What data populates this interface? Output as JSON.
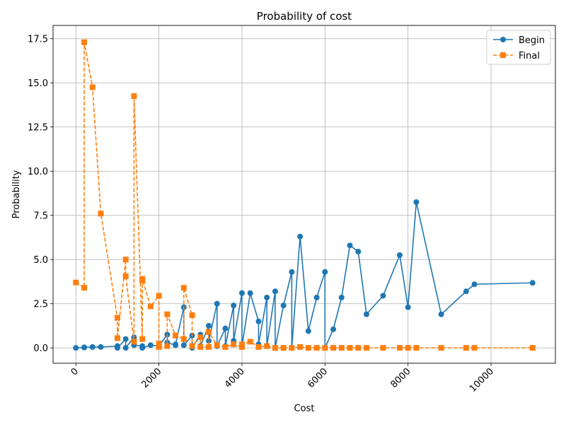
{
  "chart_data": {
    "type": "line",
    "title": "Probability of cost",
    "xlabel": "Cost",
    "ylabel": "Probability",
    "xlim": [
      -550,
      11550
    ],
    "ylim": [
      -0.87,
      18.25
    ],
    "x_ticks": [
      0,
      2000,
      4000,
      6000,
      8000,
      10000
    ],
    "x_tick_labels": [
      "0",
      "2000",
      "4000",
      "6000",
      "8000",
      "10000"
    ],
    "x_tick_rotation": 45,
    "y_ticks": [
      0.0,
      2.5,
      5.0,
      7.5,
      10.0,
      12.5,
      15.0,
      17.5
    ],
    "y_tick_labels": [
      "0.0",
      "2.5",
      "5.0",
      "7.5",
      "10.0",
      "12.5",
      "15.0",
      "17.5"
    ],
    "grid": true,
    "legend_position": "top-right",
    "series": [
      {
        "name": "Begin",
        "color": "#1f77b4",
        "line_style": "solid",
        "marker": "circle",
        "points": [
          [
            0,
            0.0
          ],
          [
            200,
            0.02
          ],
          [
            200,
            0.03
          ],
          [
            400,
            0.05
          ],
          [
            600,
            0.05
          ],
          [
            1000,
            0.1
          ],
          [
            1000,
            0.0
          ],
          [
            1200,
            0.5
          ],
          [
            1200,
            0.0
          ],
          [
            1400,
            0.6
          ],
          [
            1400,
            0.15
          ],
          [
            1600,
            0.1
          ],
          [
            1600,
            0.0
          ],
          [
            1800,
            0.15
          ],
          [
            2000,
            0.1
          ],
          [
            2200,
            0.75
          ],
          [
            2200,
            0.3
          ],
          [
            2400,
            0.15
          ],
          [
            2400,
            0.2
          ],
          [
            2600,
            2.3
          ],
          [
            2600,
            0.15
          ],
          [
            2800,
            0.7
          ],
          [
            2800,
            0.0
          ],
          [
            3000,
            0.75
          ],
          [
            3000,
            0.1
          ],
          [
            3200,
            1.25
          ],
          [
            3200,
            0.4
          ],
          [
            3400,
            2.5
          ],
          [
            3400,
            0.1
          ],
          [
            3600,
            1.1
          ],
          [
            3600,
            0.1
          ],
          [
            3800,
            2.4
          ],
          [
            3800,
            0.4
          ],
          [
            4000,
            3.1
          ],
          [
            4000,
            0.1
          ],
          [
            4200,
            3.1
          ],
          [
            4400,
            1.5
          ],
          [
            4400,
            0.2
          ],
          [
            4600,
            2.85
          ],
          [
            4600,
            0.1
          ],
          [
            4800,
            3.2
          ],
          [
            4800,
            0.0
          ],
          [
            5000,
            2.4
          ],
          [
            5200,
            4.3
          ],
          [
            5200,
            0.0
          ],
          [
            5400,
            6.3
          ],
          [
            5600,
            0.95
          ],
          [
            5800,
            2.85
          ],
          [
            6000,
            4.3
          ],
          [
            6000,
            0.0
          ],
          [
            6200,
            1.05
          ],
          [
            6400,
            2.85
          ],
          [
            6600,
            5.8
          ],
          [
            6800,
            5.45
          ],
          [
            7000,
            1.9
          ],
          [
            7400,
            2.95
          ],
          [
            7800,
            5.25
          ],
          [
            8000,
            2.3
          ],
          [
            8200,
            8.25
          ],
          [
            8800,
            1.9
          ],
          [
            9400,
            3.2
          ],
          [
            9600,
            3.6
          ],
          [
            11000,
            3.68
          ]
        ]
      },
      {
        "name": "Final",
        "color": "#ff7f0e",
        "line_style": "dashed",
        "marker": "square",
        "points": [
          [
            0,
            3.7
          ],
          [
            200,
            3.4
          ],
          [
            200,
            17.3
          ],
          [
            400,
            14.75
          ],
          [
            600,
            7.6
          ],
          [
            1000,
            1.7
          ],
          [
            1000,
            0.55
          ],
          [
            1200,
            5.0
          ],
          [
            1200,
            4.05
          ],
          [
            1400,
            0.35
          ],
          [
            1400,
            14.25
          ],
          [
            1600,
            0.5
          ],
          [
            1600,
            3.8
          ],
          [
            1600,
            3.9
          ],
          [
            1800,
            2.35
          ],
          [
            2000,
            2.95
          ],
          [
            2000,
            0.25
          ],
          [
            2000,
            0.05
          ],
          [
            2200,
            0.1
          ],
          [
            2200,
            1.9
          ],
          [
            2400,
            0.7
          ],
          [
            2600,
            0.5
          ],
          [
            2600,
            3.4
          ],
          [
            2800,
            1.85
          ],
          [
            2800,
            0.1
          ],
          [
            3000,
            0.6
          ],
          [
            3000,
            0.05
          ],
          [
            3200,
            0.05
          ],
          [
            3200,
            0.9
          ],
          [
            3400,
            0.15
          ],
          [
            3600,
            0.05
          ],
          [
            3800,
            0.2
          ],
          [
            4000,
            0.05
          ],
          [
            4000,
            0.2
          ],
          [
            4200,
            0.35
          ],
          [
            4400,
            0.05
          ],
          [
            4600,
            0.1
          ],
          [
            4800,
            0.0
          ],
          [
            5000,
            0.0
          ],
          [
            5200,
            0.0
          ],
          [
            5400,
            0.05
          ],
          [
            5600,
            0.0
          ],
          [
            5800,
            0.0
          ],
          [
            6000,
            0.0
          ],
          [
            6200,
            0.0
          ],
          [
            6400,
            0.0
          ],
          [
            6600,
            0.0
          ],
          [
            6800,
            0.0
          ],
          [
            7000,
            0.0
          ],
          [
            7400,
            0.0
          ],
          [
            7800,
            0.0
          ],
          [
            8000,
            0.0
          ],
          [
            8200,
            0.0
          ],
          [
            8800,
            0.0
          ],
          [
            9400,
            0.0
          ],
          [
            9600,
            0.0
          ],
          [
            11000,
            0.0
          ]
        ]
      }
    ]
  }
}
